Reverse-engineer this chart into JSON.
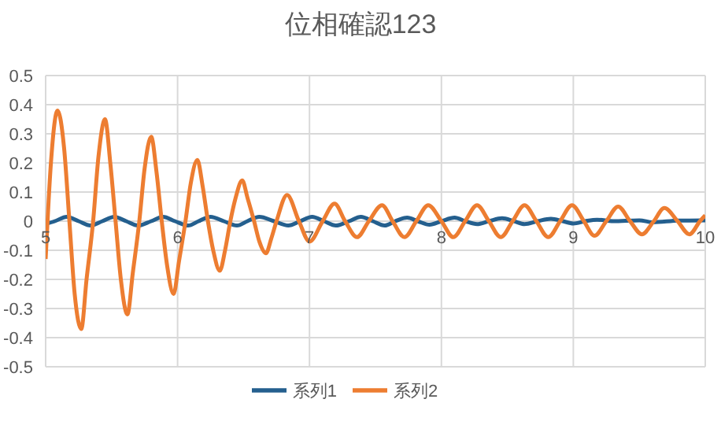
{
  "chart_data": {
    "type": "line",
    "title": "位相確認123",
    "xlim": [
      5,
      10
    ],
    "xticks": [
      5,
      6,
      7,
      8,
      9,
      10
    ],
    "ylim": [
      -0.5,
      0.5
    ],
    "yticks": [
      0.5,
      0.4,
      0.3,
      0.2,
      0.1,
      0,
      -0.1,
      -0.2,
      -0.3,
      -0.4,
      -0.5
    ],
    "grid": true,
    "legend": "bottom",
    "marker": "none",
    "line_style": "solid",
    "series": [
      {
        "name": "系列1",
        "color": "#245f8e",
        "x": [
          5.0,
          5.07,
          5.16,
          5.25,
          5.34,
          5.43,
          5.52,
          5.61,
          5.7,
          5.8,
          5.89,
          5.98,
          6.08,
          6.16,
          6.25,
          6.35,
          6.45,
          6.53,
          6.62,
          6.73,
          6.84,
          6.93,
          7.02,
          7.11,
          7.2,
          7.3,
          7.39,
          7.48,
          7.57,
          7.65,
          7.74,
          7.82,
          7.91,
          8.0,
          8.1,
          8.18,
          8.27,
          8.36,
          8.46,
          8.55,
          8.63,
          8.73,
          8.83,
          8.92,
          9.0,
          9.09,
          9.18,
          9.3,
          9.5,
          9.6,
          9.8,
          10.0
        ],
        "values": [
          -0.01,
          0,
          0.015,
          0,
          -0.015,
          0,
          0.015,
          0,
          -0.015,
          0,
          0.015,
          0,
          -0.015,
          0,
          0.015,
          0,
          -0.015,
          0,
          0.015,
          0,
          -0.015,
          0,
          0.015,
          0,
          -0.015,
          0,
          0.015,
          0,
          -0.015,
          0,
          0.012,
          0,
          -0.012,
          0,
          0.012,
          0,
          -0.01,
          0,
          0.01,
          0,
          -0.01,
          0,
          0.008,
          0,
          -0.008,
          0,
          0.005,
          0,
          0.003,
          -0.004,
          0.002,
          0.003
        ]
      },
      {
        "name": "系列2",
        "color": "#ed7d31",
        "x": [
          5.0,
          5.04,
          5.09,
          5.14,
          5.18,
          5.22,
          5.27,
          5.31,
          5.36,
          5.4,
          5.45,
          5.49,
          5.53,
          5.57,
          5.62,
          5.66,
          5.71,
          5.75,
          5.8,
          5.84,
          5.88,
          5.92,
          5.97,
          6.01,
          6.06,
          6.1,
          6.15,
          6.19,
          6.23,
          6.27,
          6.32,
          6.36,
          6.4,
          6.44,
          6.49,
          6.53,
          6.58,
          6.62,
          6.67,
          6.71,
          6.75,
          6.83,
          6.92,
          7.0,
          7.1,
          7.19,
          7.27,
          7.36,
          7.45,
          7.55,
          7.63,
          7.72,
          7.81,
          7.9,
          8.0,
          8.09,
          8.18,
          8.27,
          8.36,
          8.45,
          8.54,
          8.63,
          8.72,
          8.81,
          8.9,
          8.99,
          9.08,
          9.16,
          9.25,
          9.34,
          9.43,
          9.52,
          9.61,
          9.69,
          9.79,
          9.88,
          9.96,
          10.0
        ],
        "values": [
          -0.13,
          0.2,
          0.38,
          0.25,
          0,
          -0.25,
          -0.37,
          -0.2,
          0,
          0.22,
          0.35,
          0.2,
          0,
          -0.2,
          -0.32,
          -0.18,
          0,
          0.18,
          0.29,
          0.17,
          0,
          -0.15,
          -0.25,
          -0.14,
          0,
          0.13,
          0.21,
          0.12,
          0,
          -0.1,
          -0.17,
          -0.1,
          0,
          0.08,
          0.14,
          0.08,
          0,
          -0.07,
          -0.11,
          -0.06,
          0,
          0.09,
          0,
          -0.07,
          0,
          0.06,
          0,
          -0.055,
          0,
          0.055,
          0,
          -0.055,
          0,
          0.055,
          0,
          -0.055,
          0,
          0.055,
          0,
          -0.055,
          0,
          0.055,
          0,
          -0.055,
          0,
          0.055,
          0,
          -0.05,
          0,
          0.05,
          0,
          -0.045,
          0,
          0.045,
          0,
          -0.045,
          0,
          0.02
        ]
      }
    ]
  }
}
